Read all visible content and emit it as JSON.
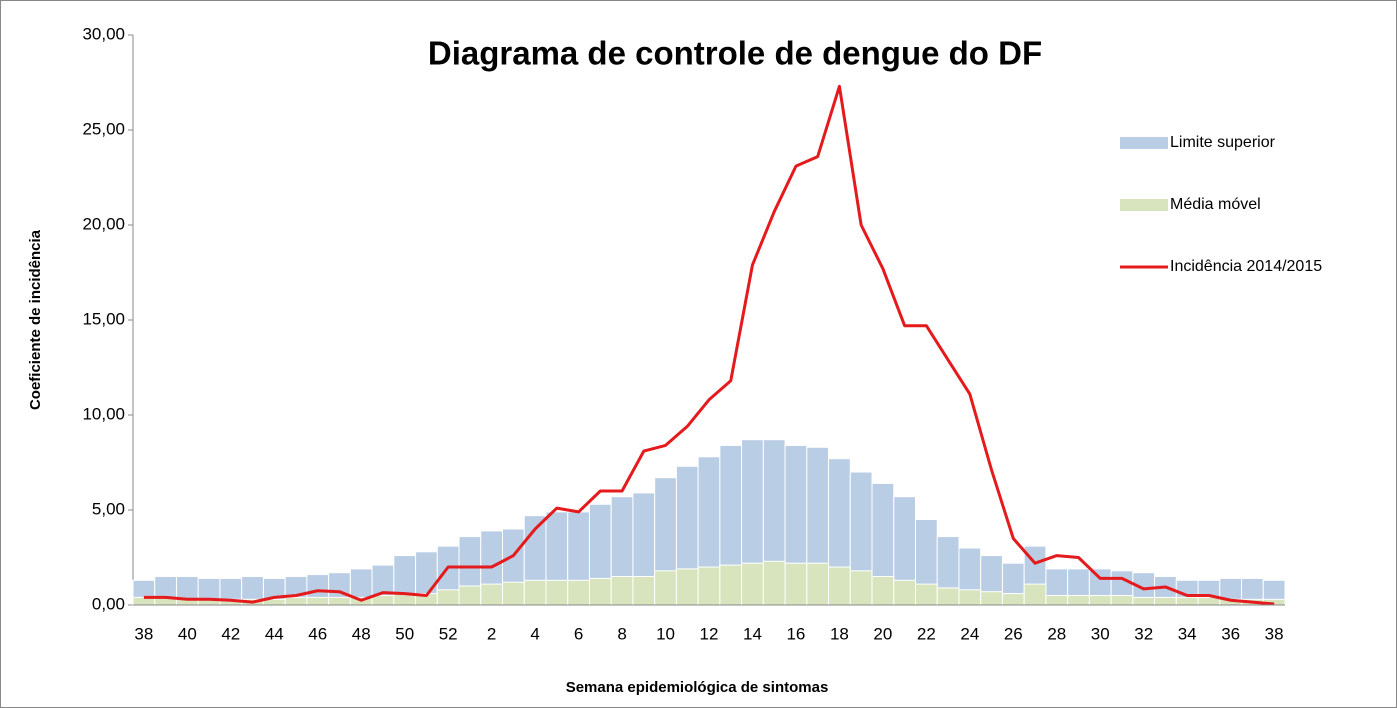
{
  "chart_data": {
    "type": "bar",
    "title": "Diagrama de controle de dengue do DF",
    "x_label": "Semana epidemiológica  de sintomas",
    "y_label": "Coeficiente de incidência",
    "categories": [
      "38",
      null,
      "40",
      null,
      "42",
      null,
      "44",
      null,
      "46",
      null,
      "48",
      null,
      "50",
      null,
      "52",
      null,
      "2",
      null,
      "4",
      null,
      "6",
      null,
      "8",
      null,
      "10",
      null,
      "12",
      null,
      "14",
      null,
      "16",
      null,
      "18",
      null,
      "20",
      null,
      "22",
      null,
      "24",
      null,
      "26",
      null,
      "28",
      null,
      "30",
      null,
      "32",
      null,
      "34",
      null,
      "36",
      null,
      "38"
    ],
    "series": [
      {
        "name": "Limite superior",
        "type": "bar",
        "color": "#b9cde5",
        "values": [
          1.3,
          1.5,
          1.5,
          1.4,
          1.4,
          1.5,
          1.4,
          1.5,
          1.6,
          1.7,
          1.9,
          2.1,
          2.6,
          2.8,
          3.1,
          3.6,
          3.9,
          4.0,
          4.7,
          4.9,
          4.9,
          5.3,
          5.7,
          5.9,
          6.7,
          7.3,
          7.8,
          8.4,
          8.7,
          8.7,
          8.4,
          8.3,
          7.7,
          7.0,
          6.4,
          5.7,
          4.5,
          3.6,
          3.0,
          2.6,
          2.2,
          3.1,
          1.9,
          1.9,
          1.9,
          1.8,
          1.7,
          1.5,
          1.3,
          1.3,
          1.4,
          1.4,
          1.3
        ]
      },
      {
        "name": "Média móvel",
        "type": "bar",
        "color": "#d7e4bd",
        "values": [
          0.4,
          0.4,
          0.3,
          0.3,
          0.3,
          0.3,
          0.3,
          0.4,
          0.4,
          0.4,
          0.4,
          0.5,
          0.6,
          0.6,
          0.8,
          1.0,
          1.1,
          1.2,
          1.3,
          1.3,
          1.3,
          1.4,
          1.5,
          1.5,
          1.8,
          1.9,
          2.0,
          2.1,
          2.2,
          2.3,
          2.2,
          2.2,
          2.0,
          1.8,
          1.5,
          1.3,
          1.1,
          0.9,
          0.8,
          0.7,
          0.6,
          1.1,
          0.5,
          0.5,
          0.5,
          0.5,
          0.4,
          0.4,
          0.4,
          0.4,
          0.3,
          0.3,
          0.3
        ]
      },
      {
        "name": "Incidência 2014/2015",
        "type": "line",
        "color": "#e41a1c",
        "values": [
          0.4,
          0.4,
          0.3,
          0.3,
          0.25,
          0.15,
          0.4,
          0.5,
          0.75,
          0.7,
          0.25,
          0.65,
          0.6,
          0.5,
          2.0,
          2.0,
          2.0,
          2.6,
          4.0,
          5.1,
          4.9,
          6.0,
          6.0,
          8.1,
          8.4,
          9.4,
          10.8,
          11.8,
          17.9,
          20.7,
          23.1,
          23.6,
          27.3,
          20.0,
          17.7,
          14.7,
          14.7,
          12.9,
          11.1,
          7.1,
          3.5,
          2.2,
          2.6,
          2.5,
          1.4,
          1.4,
          0.85,
          0.95,
          0.5,
          0.5,
          0.25,
          0.15,
          0.05
        ]
      }
    ],
    "ylim": [
      0,
      30
    ],
    "yticks": [
      {
        "value": 0,
        "label": "0,00"
      },
      {
        "value": 5,
        "label": "5,00"
      },
      {
        "value": 10,
        "label": "10,00"
      },
      {
        "value": 15,
        "label": "15,00"
      },
      {
        "value": 20,
        "label": "20,00"
      },
      {
        "value": 25,
        "label": "25,00"
      },
      {
        "value": 30,
        "label": "30,00"
      }
    ],
    "legend": "right"
  }
}
